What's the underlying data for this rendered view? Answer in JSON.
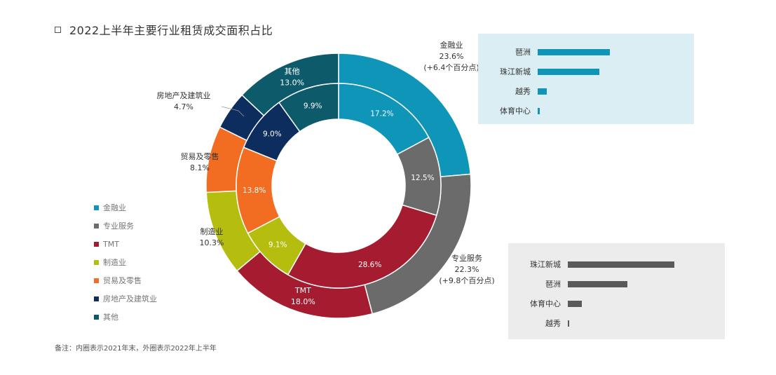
{
  "title": "2022上半年主要行业租赁成交面积占比",
  "note": "备注：内圈表示2021年末，外圈表示2022年上半年",
  "chart_data": {
    "type": "donut",
    "categories": [
      "金融业",
      "专业服务",
      "TMT",
      "制造业",
      "贸易及零售",
      "房地产及建筑业",
      "其他"
    ],
    "series": [
      {
        "ring": "outer",
        "values": [
          23.6,
          22.3,
          18.0,
          10.3,
          8.1,
          4.7,
          13.0
        ],
        "labels": [
          "23.6%",
          "22.3%",
          "18.0%",
          "10.3%",
          "8.1%",
          "4.7%",
          "13.0%"
        ]
      },
      {
        "ring": "inner",
        "values": [
          17.2,
          12.5,
          28.6,
          9.1,
          13.8,
          9.0,
          9.9
        ],
        "labels": [
          "17.2%",
          "12.5%",
          "28.6%",
          "9.1%",
          "13.8%",
          "9.0%",
          "9.9%"
        ]
      }
    ],
    "outer_label_names": [
      "金融业",
      "专业服务",
      "TMT",
      "制造业",
      "贸易及零售",
      "房地产及建筑业",
      "其他"
    ],
    "outer_label_changes": [
      "(+6.4个百分点)",
      "(+9.8个百分点)",
      "",
      "",
      "",
      "",
      ""
    ],
    "colors": [
      "#0e95b8",
      "#6b6b6b",
      "#a51b30",
      "#b5be0f",
      "#f26d21",
      "#0d2d5e",
      "#0d5a6a"
    ],
    "legend": [
      "金融业",
      "专业服务",
      "TMT",
      "制造业",
      "贸易及零售",
      "房地产及建筑业",
      "其他"
    ],
    "legend_position": "left",
    "sub_charts": [
      {
        "type": "bar",
        "orientation": "horizontal",
        "industry": "金融业",
        "categories": [
          "琶洲",
          "珠江新城",
          "越秀",
          "体育中心"
        ],
        "values": [
          100,
          85,
          13,
          3
        ],
        "color": "#0e95b8",
        "background": "#daeef3"
      },
      {
        "type": "bar",
        "orientation": "horizontal",
        "industry": "专业服务",
        "categories": [
          "珠江新城",
          "琶洲",
          "体育中心",
          "越秀"
        ],
        "values": [
          100,
          56,
          13,
          1
        ],
        "color": "#5a5a5a",
        "background": "#ececec"
      }
    ]
  }
}
